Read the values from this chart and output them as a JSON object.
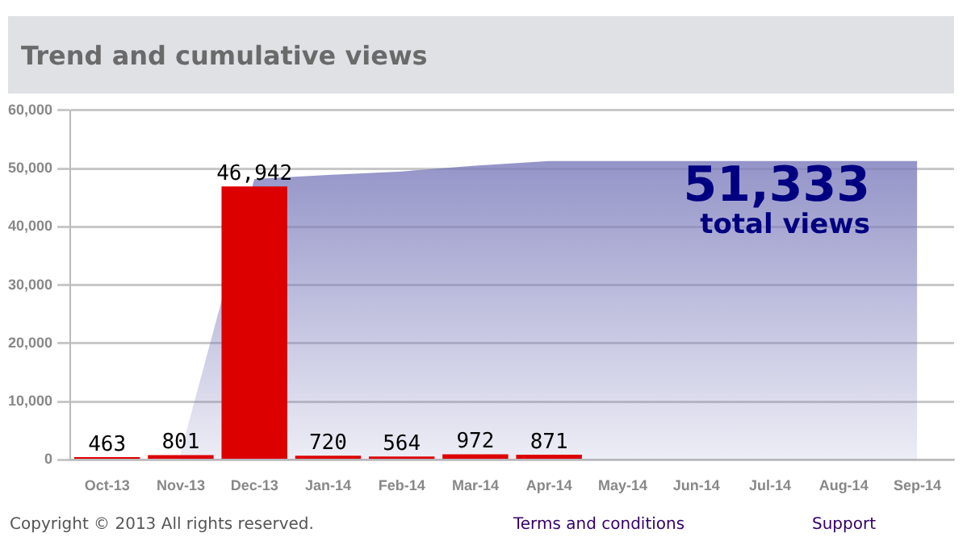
{
  "chart_data": {
    "type": "bar",
    "title": "Trend and cumulative views",
    "categories": [
      "Oct-13",
      "Nov-13",
      "Dec-13",
      "Jan-14",
      "Feb-14",
      "Mar-14",
      "Apr-14",
      "May-14",
      "Jun-14",
      "Jul-14",
      "Aug-14",
      "Sep-14"
    ],
    "series": [
      {
        "type": "area",
        "color": "#7c7cbc",
        "values": [
          null,
          1300,
          48200,
          48900,
          49500,
          50500,
          51300,
          51300,
          51300,
          51300,
          51300,
          51300
        ]
      },
      {
        "color": "#dd0000",
        "values": [
          463,
          801,
          46942,
          720,
          564,
          972,
          871,
          null,
          null,
          null,
          null,
          null
        ],
        "value_labels": [
          "463",
          "801",
          "46,942",
          "720",
          "564",
          "972",
          "871",
          null,
          null,
          null,
          null,
          null
        ]
      }
    ],
    "ylim": [
      0,
      60000
    ],
    "yticks": [
      {
        "value": 0,
        "label": "0"
      },
      {
        "value": 10000,
        "label": "10,000"
      },
      {
        "value": 20000,
        "label": "20,000"
      },
      {
        "value": 30000,
        "label": "30,000"
      },
      {
        "value": 40000,
        "label": "40,000"
      },
      {
        "value": 50000,
        "label": "50,000"
      },
      {
        "value": 60000,
        "label": "60,000"
      }
    ],
    "grid": "y",
    "legend": false,
    "annotations": [
      "51,333",
      "total views",
      "Copyright © 2013 All rights reserved.",
      "Terms and conditions",
      "Support"
    ]
  }
}
